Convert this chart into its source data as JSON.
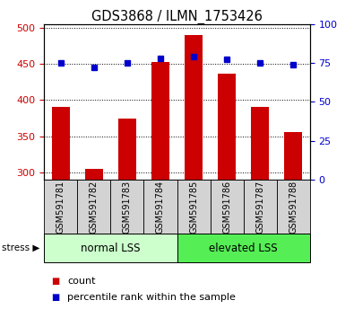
{
  "title": "GDS3868 / ILMN_1753426",
  "samples": [
    "GSM591781",
    "GSM591782",
    "GSM591783",
    "GSM591784",
    "GSM591785",
    "GSM591786",
    "GSM591787",
    "GSM591788"
  ],
  "counts": [
    390,
    305,
    374,
    453,
    490,
    436,
    390,
    356
  ],
  "percentiles": [
    75,
    72,
    75,
    78,
    79,
    77,
    75,
    74
  ],
  "ylim_left": [
    290,
    505
  ],
  "ylim_right": [
    0,
    100
  ],
  "yticks_left": [
    300,
    350,
    400,
    450,
    500
  ],
  "yticks_right": [
    0,
    25,
    50,
    75,
    100
  ],
  "bar_color": "#cc0000",
  "dot_color": "#0000cc",
  "bar_width": 0.55,
  "groups": [
    {
      "label": "normal LSS",
      "start": 0,
      "end": 4,
      "color": "#ccffcc"
    },
    {
      "label": "elevated LSS",
      "start": 4,
      "end": 8,
      "color": "#55ee55"
    }
  ],
  "stress_label": "stress",
  "legend_count_label": "count",
  "legend_percentile_label": "percentile rank within the sample",
  "grid_color": "#000000",
  "tick_label_color_left": "#cc0000",
  "tick_label_color_right": "#0000cc",
  "title_fontsize": 10.5,
  "tick_fontsize": 8,
  "sample_label_fontsize": 7,
  "group_label_fontsize": 8.5,
  "legend_fontsize": 8
}
